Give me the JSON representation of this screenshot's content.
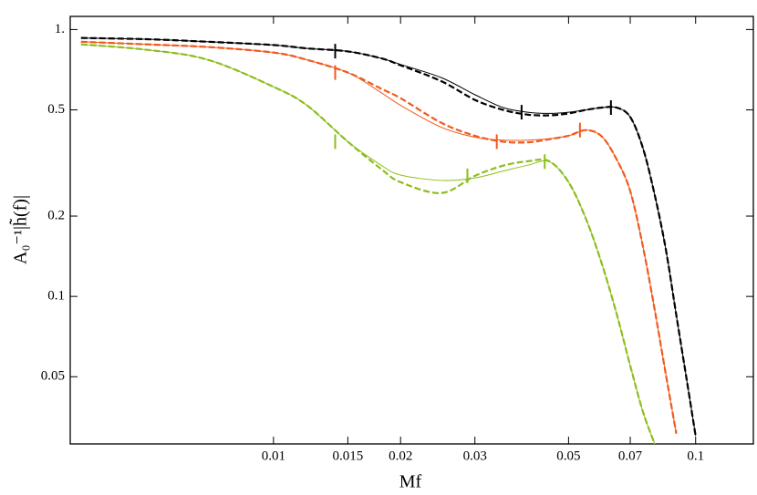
{
  "chart_data": {
    "type": "line",
    "xlabel": "Mf",
    "ylabel": "A₀⁻¹|h̃(f)|",
    "xscale": "log",
    "yscale": "log",
    "xlim": [
      0.0033,
      0.137
    ],
    "ylim": [
      0.028,
      1.12
    ],
    "xticks": [
      0.01,
      0.015,
      0.02,
      0.03,
      0.05,
      0.07,
      0.1
    ],
    "yticks": [
      {
        "value": 1,
        "label": "1."
      },
      0.5,
      0.2,
      0.1,
      0.05
    ],
    "x": [
      0.0035,
      0.005,
      0.007,
      0.01,
      0.012,
      0.015,
      0.018,
      0.02,
      0.025,
      0.03,
      0.035,
      0.04,
      0.045,
      0.05,
      0.055,
      0.06,
      0.065,
      0.07,
      0.075,
      0.08,
      0.085,
      0.09,
      0.095,
      0.1
    ],
    "series": [
      {
        "color": "#000000",
        "dash": true,
        "values": [
          0.93,
          0.92,
          0.9,
          0.875,
          0.85,
          0.828,
          0.78,
          0.735,
          0.64,
          0.545,
          0.5,
          0.48,
          0.477,
          0.485,
          0.5,
          0.51,
          0.51,
          0.47,
          0.36,
          0.24,
          0.15,
          0.085,
          0.05,
          0.03
        ]
      },
      {
        "color": "#000000",
        "dash": false,
        "values": [
          0.93,
          0.92,
          0.9,
          0.875,
          0.85,
          0.828,
          0.78,
          0.74,
          0.66,
          0.57,
          0.51,
          0.49,
          0.485,
          0.49,
          0.5,
          0.51,
          0.51,
          0.47,
          0.36,
          0.24,
          0.15,
          0.085,
          0.05,
          0.03
        ]
      },
      {
        "color": "#f05a1e",
        "dash": true,
        "values": [
          0.9,
          0.88,
          0.86,
          0.82,
          0.77,
          0.69,
          0.6,
          0.553,
          0.447,
          0.4,
          0.38,
          0.378,
          0.388,
          0.4,
          0.42,
          0.397,
          0.326,
          0.248,
          0.154,
          0.089,
          0.051,
          0.0306,
          null,
          null
        ]
      },
      {
        "color": "#f05a1e",
        "dash": false,
        "values": [
          0.9,
          0.88,
          0.86,
          0.82,
          0.77,
          0.69,
          0.58,
          0.52,
          0.43,
          0.395,
          0.385,
          0.385,
          0.39,
          0.4,
          0.42,
          0.397,
          0.326,
          0.248,
          0.154,
          0.089,
          0.051,
          0.0306,
          null,
          null
        ]
      },
      {
        "color": "#8cbe1e",
        "dash": true,
        "values": [
          0.88,
          0.84,
          0.77,
          0.61,
          0.52,
          0.38,
          0.3,
          0.268,
          0.244,
          0.283,
          0.309,
          0.321,
          0.321,
          0.268,
          0.195,
          0.132,
          0.086,
          0.055,
          0.037,
          0.028,
          null,
          null,
          null,
          null
        ]
      },
      {
        "color": "#8cbe1e",
        "dash": false,
        "values": [
          0.88,
          0.84,
          0.77,
          0.61,
          0.52,
          0.38,
          0.31,
          0.285,
          0.272,
          0.278,
          0.295,
          0.31,
          0.32,
          0.268,
          0.195,
          0.132,
          0.086,
          0.055,
          0.037,
          0.028,
          null,
          null,
          null,
          null
        ]
      }
    ],
    "markers": [
      {
        "color": "#000000",
        "x": [
          0.014,
          0.0387,
          0.063
        ],
        "y": [
          0.83,
          0.49,
          0.51
        ]
      },
      {
        "color": "#f05a1e",
        "x": [
          0.014,
          0.0338,
          0.0532
        ],
        "y": [
          0.69,
          0.38,
          0.42
        ]
      },
      {
        "color": "#8cbe1e",
        "x": [
          0.014,
          0.0288,
          0.0439
        ],
        "y": [
          0.38,
          0.283,
          0.32
        ]
      }
    ]
  }
}
